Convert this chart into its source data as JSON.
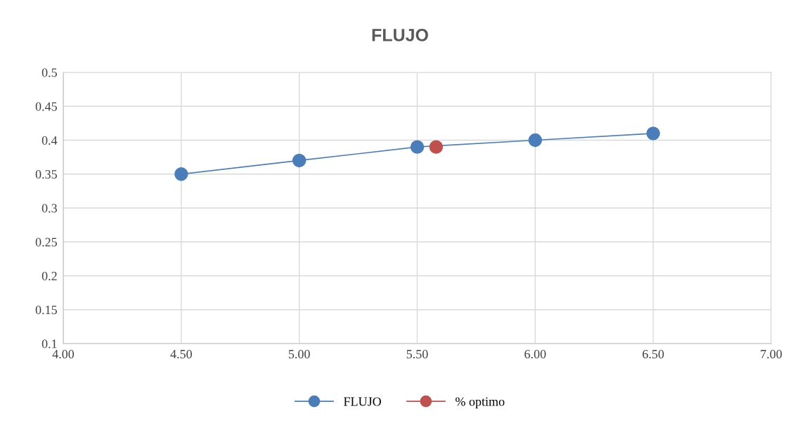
{
  "chart_data": {
    "type": "line",
    "title": "FLUJO",
    "series": [
      {
        "name": "FLUJO",
        "color": "#4a7ebb",
        "x": [
          4.5,
          5.0,
          5.5,
          6.0,
          6.5
        ],
        "values": [
          0.35,
          0.37,
          0.39,
          0.4,
          0.41
        ]
      },
      {
        "name": "% optimo",
        "color": "#c0504d",
        "x": [
          5.58
        ],
        "values": [
          0.39
        ]
      }
    ],
    "xlim": [
      4.0,
      7.0
    ],
    "xticks": [
      {
        "value": 4.0,
        "label": "4.00"
      },
      {
        "value": 4.5,
        "label": "4.50"
      },
      {
        "value": 5.0,
        "label": "5.00"
      },
      {
        "value": 5.5,
        "label": "5.50"
      },
      {
        "value": 6.0,
        "label": "6.00"
      },
      {
        "value": 6.5,
        "label": "6.50"
      },
      {
        "value": 7.0,
        "label": "7.00"
      }
    ],
    "ylim": [
      0.1,
      0.5
    ],
    "yticks": [
      0.1,
      0.15,
      0.2,
      0.25,
      0.3,
      0.35,
      0.4,
      0.45,
      0.5
    ],
    "grid": true,
    "legend": "bottom",
    "marker": "circle",
    "line_style": "solid"
  }
}
